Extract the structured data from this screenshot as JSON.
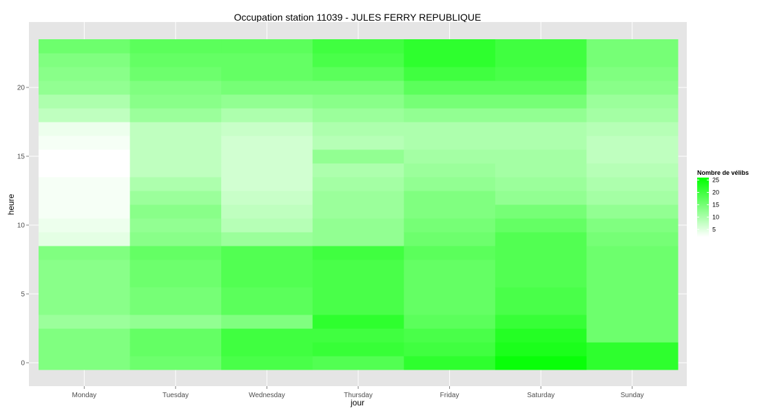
{
  "chart_data": {
    "type": "heatmap",
    "title": "Occupation station 11039 - JULES FERRY REPUBLIQUE",
    "xlabel": "jour",
    "ylabel": "heure",
    "x_categories": [
      "Monday",
      "Tuesday",
      "Wednesday",
      "Thursday",
      "Friday",
      "Saturday",
      "Sunday"
    ],
    "y_hours": [
      0,
      1,
      2,
      3,
      4,
      5,
      6,
      7,
      8,
      9,
      10,
      11,
      12,
      13,
      14,
      15,
      16,
      17,
      18,
      19,
      20,
      21,
      22,
      23
    ],
    "ylim": [
      -0.5,
      23.5
    ],
    "y_ticks": [
      0,
      5,
      10,
      15,
      20
    ],
    "grid": true,
    "color_scale": {
      "low": "#ffffff",
      "high": "#00ff00",
      "min": 0,
      "max": 28
    },
    "legend": {
      "title": "Nombre de vélibs",
      "placement": "right",
      "ticks": [
        5,
        10,
        15,
        20,
        25
      ]
    },
    "values": {
      "Monday": [
        14,
        14,
        14,
        11,
        13,
        13,
        13,
        13,
        14,
        3,
        2,
        1,
        1,
        1,
        0,
        0,
        1,
        2,
        7,
        9,
        12,
        13,
        14,
        16
      ],
      "Tuesday": [
        16,
        17,
        17,
        12,
        15,
        15,
        16,
        16,
        17,
        13,
        12,
        13,
        11,
        9,
        7,
        7,
        7,
        7,
        11,
        13,
        14,
        16,
        17,
        18
      ],
      "Wednesday": [
        20,
        21,
        21,
        14,
        18,
        18,
        19,
        19,
        19,
        11,
        8,
        7,
        6,
        5,
        5,
        5,
        5,
        6,
        9,
        12,
        15,
        17,
        17,
        18
      ],
      "Thursday": [
        19,
        22,
        21,
        23,
        20,
        20,
        20,
        20,
        21,
        12,
        12,
        11,
        11,
        10,
        9,
        12,
        8,
        9,
        11,
        13,
        15,
        18,
        20,
        21
      ],
      "Friday": [
        23,
        21,
        20,
        18,
        17,
        17,
        17,
        17,
        18,
        16,
        15,
        14,
        14,
        12,
        11,
        10,
        9,
        9,
        12,
        15,
        18,
        21,
        23,
        23
      ],
      "Saturday": [
        27,
        25,
        24,
        22,
        20,
        20,
        19,
        19,
        19,
        19,
        17,
        15,
        12,
        11,
        10,
        10,
        9,
        9,
        12,
        15,
        18,
        20,
        21,
        21
      ],
      "Sunday": [
        23,
        23,
        16,
        16,
        16,
        16,
        16,
        16,
        16,
        15,
        14,
        12,
        10,
        9,
        8,
        7,
        7,
        8,
        10,
        11,
        13,
        14,
        15,
        15
      ]
    }
  }
}
